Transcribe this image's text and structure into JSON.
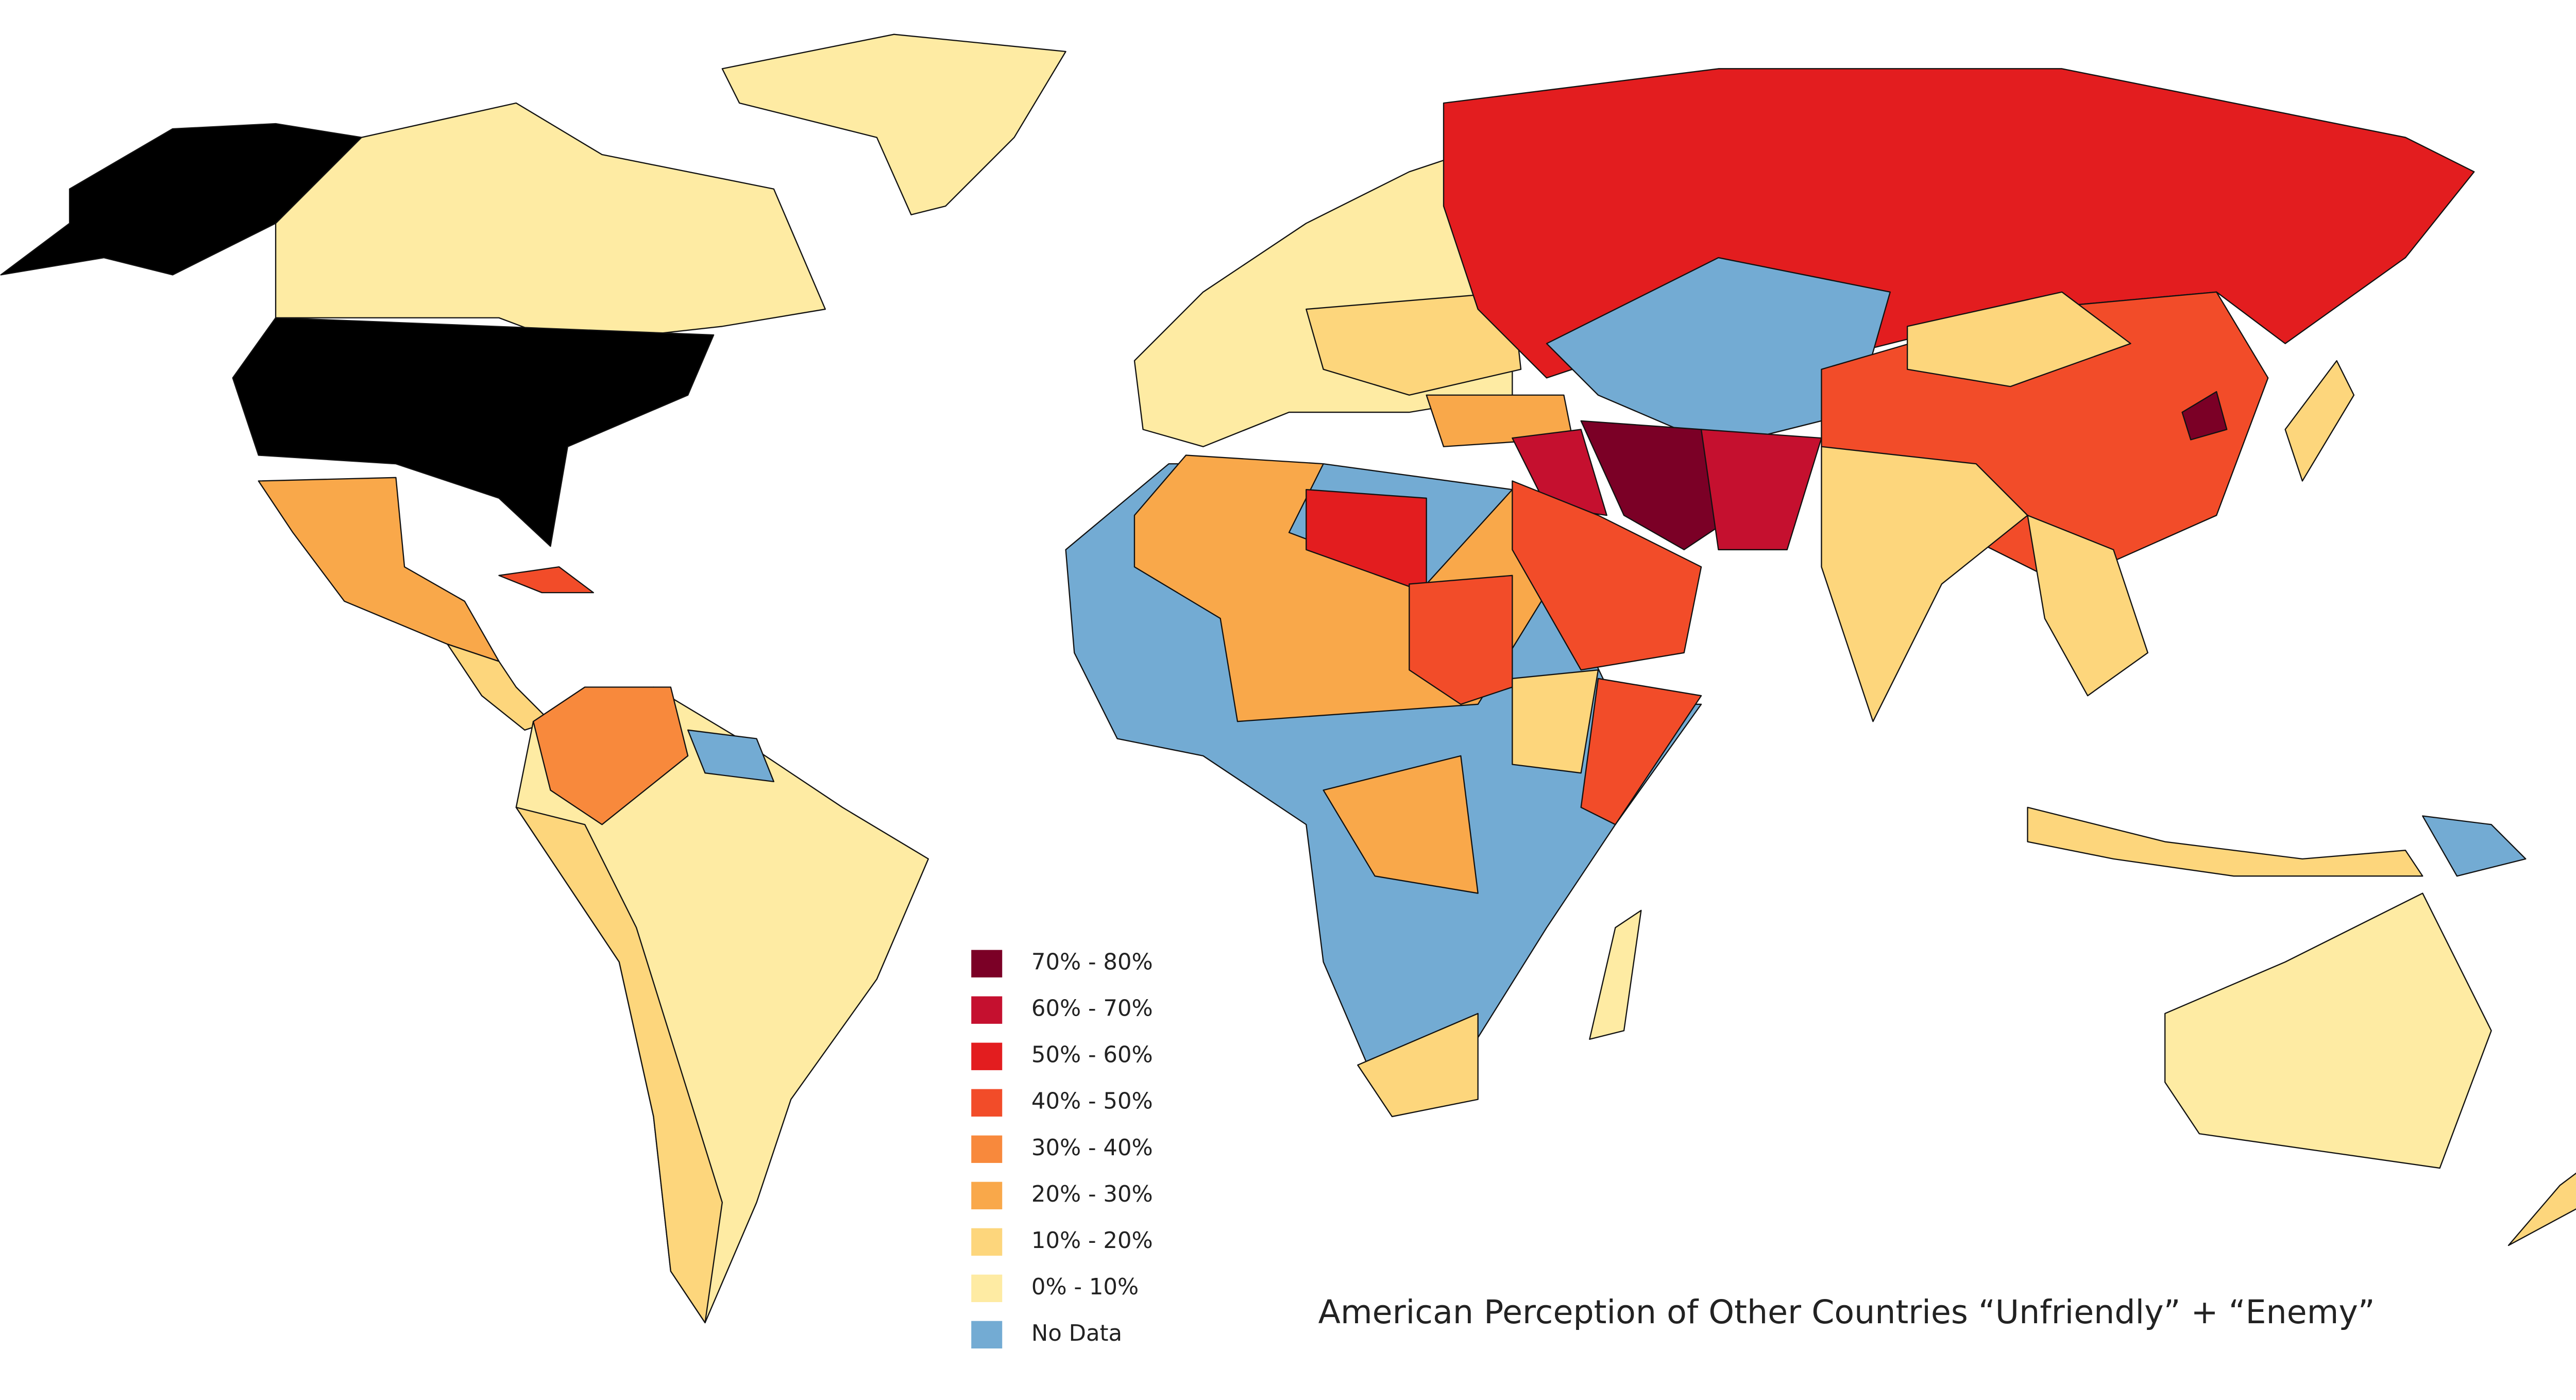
{
  "map": {
    "title": "American Perception of Other Countries “Unfriendly” + “Enemy”",
    "legend": [
      {
        "label": "70% - 80%",
        "color": "#7b0026"
      },
      {
        "label": "60% - 70%",
        "color": "#c5102f"
      },
      {
        "label": "50% - 60%",
        "color": "#e31d1f"
      },
      {
        "label": "40% - 50%",
        "color": "#f24c29"
      },
      {
        "label": "30% - 40%",
        "color": "#f8893c"
      },
      {
        "label": "20% - 30%",
        "color": "#f9a84a"
      },
      {
        "label": "10% - 20%",
        "color": "#fdd67c"
      },
      {
        "label": "0% - 10%",
        "color": "#feeba3"
      },
      {
        "label": "No Data",
        "color": "#73abd3"
      }
    ]
  }
}
